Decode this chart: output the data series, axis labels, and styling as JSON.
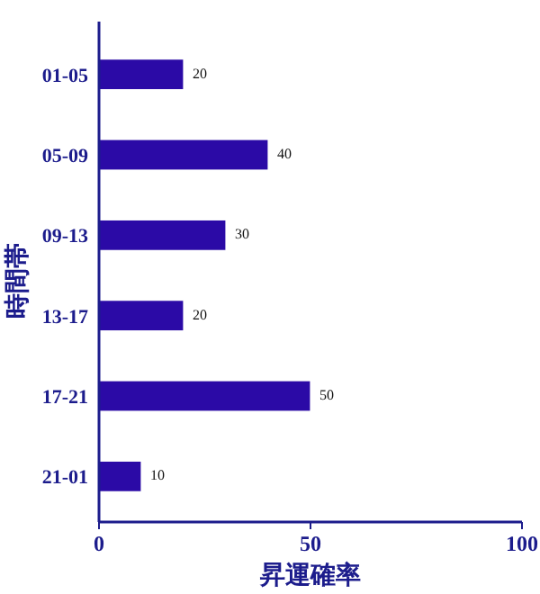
{
  "chart_data": {
    "type": "bar",
    "orientation": "horizontal",
    "categories": [
      "01-05",
      "05-09",
      "09-13",
      "13-17",
      "17-21",
      "21-01"
    ],
    "values": [
      20,
      40,
      30,
      20,
      50,
      10
    ],
    "color": "#2b0aa6",
    "xlim": [
      0,
      100
    ],
    "xticks": [
      0,
      50,
      100
    ],
    "xlabel": "昇運確率",
    "ylabel": "時間帯",
    "data_labels": true
  }
}
